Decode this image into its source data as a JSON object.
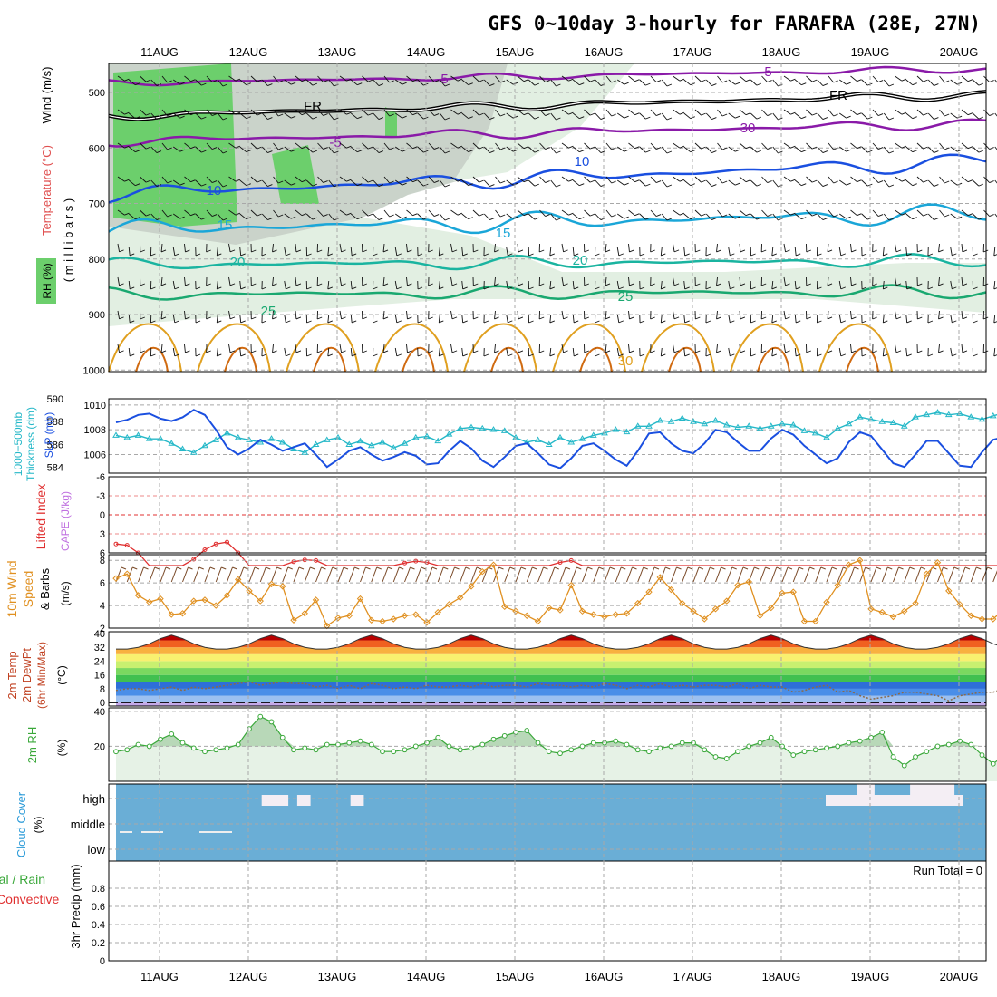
{
  "title": "GFS 0~10day 3-hourly for FARAFRA (28E, 27N)",
  "days": [
    "11AUG",
    "12AUG",
    "13AUG",
    "14AUG",
    "15AUG",
    "16AUG",
    "17AUG",
    "18AUG",
    "19AUG",
    "20AUG"
  ],
  "colors": {
    "grid": "#a8a8a8",
    "panel_border": "#000000",
    "purple": "#8a1aa8",
    "blue": "#1a4fe0",
    "cyan": "#1aa6d8",
    "teal": "#1ab4a0",
    "green": "#1aa870",
    "orange": "#e0a020",
    "dark_orange": "#d06a10",
    "rh_dark": "#b8c4b8",
    "rh_light": "#e2efe2",
    "rh_bright": "#6ccf6c",
    "cloud": "#6aaed6",
    "lifted": "#e03030",
    "cape": "#c070e0",
    "wind10m": "#e09020",
    "rh2m": "#3aa83a"
  },
  "upper_air": {
    "labels": {
      "rh": "RH (%)",
      "temperature": "Temperature (°C)",
      "wind": "Wind (m/s)",
      "pressure": "( m i l l i b a r s )"
    },
    "pressure_ticks": [
      "500",
      "600",
      "700",
      "800",
      "900",
      "1000"
    ],
    "contour_labels": [
      "-5",
      "FR",
      "-5",
      "10",
      "15",
      "20",
      "25",
      "30",
      "-5",
      "FR",
      "10",
      "15",
      "20",
      "25",
      "30"
    ]
  },
  "panels": {
    "thickness": {
      "label_left": "1000−500mb\nThickness (dm)",
      "label_right": "SLP (mb)",
      "thick_ticks": [
        "590",
        "588",
        "586",
        "584"
      ],
      "slp_ticks": [
        "1010",
        "1008",
        "1006"
      ]
    },
    "stability": {
      "label_lifted": "Lifted Index",
      "label_cape": "CAPE (J/kg)",
      "ticks": [
        "-6",
        "-3",
        "0",
        "3",
        "6"
      ]
    },
    "wind10m": {
      "label": "10m Wind Speed & Barbs",
      "unit": "(m/s)",
      "ticks": [
        "8",
        "6",
        "4",
        "2"
      ]
    },
    "temp2m": {
      "label_a": "2m Temp",
      "label_b": "2m DewPt",
      "label_c": "(6hr Min/Max)",
      "unit": "(°C)",
      "ticks": [
        "40",
        "32",
        "24",
        "16",
        "8",
        "0"
      ]
    },
    "rh2m": {
      "label": "2m RH",
      "unit": "(%)",
      "ticks": [
        "40",
        "20"
      ]
    },
    "cloud": {
      "label": "Cloud Cover",
      "unit": "(%)",
      "levels": [
        "high",
        "middle",
        "low"
      ]
    },
    "precip": {
      "label_a": "Total / Rain",
      "label_b": "Convective",
      "label_c": "3hr Precip (mm)",
      "ticks": [
        "0.8",
        "0.6",
        "0.4",
        "0.2",
        "0"
      ],
      "run_total": "Run Total = 0"
    }
  },
  "chart_data": [
    {
      "type": "line",
      "name": "slp",
      "unit": "mb",
      "step_hours": 3,
      "values": [
        1008.6,
        1008.8,
        1009.2,
        1009.3,
        1008.9,
        1008.7,
        1009.0,
        1009.6,
        1009.2,
        1008.0,
        1006.6,
        1006.0,
        1006.5,
        1007.2,
        1006.8,
        1006.3,
        1006.6,
        1006.9,
        1006.0,
        1005.0,
        1005.6,
        1006.3,
        1006.6,
        1006.0,
        1005.5,
        1005.8,
        1006.2,
        1005.9,
        1005.2,
        1005.3,
        1006.3,
        1007.1,
        1006.5,
        1005.5,
        1005.0,
        1005.8,
        1006.7,
        1006.9,
        1006.1,
        1005.2,
        1004.9,
        1005.7,
        1006.7,
        1006.9,
        1006.3,
        1005.6,
        1005.1,
        1006.3,
        1007.7,
        1007.8,
        1006.9,
        1006.3,
        1006.1,
        1006.9,
        1008.0,
        1007.8,
        1007.0,
        1006.3,
        1006.3,
        1007.3,
        1008.0,
        1007.6,
        1006.7,
        1006.0,
        1005.3,
        1005.7,
        1007.0,
        1007.8,
        1007.5,
        1006.4,
        1005.3,
        1005.0,
        1006.0,
        1007.1,
        1007.1,
        1006.1,
        1005.1,
        1005.0,
        1006.2,
        1007.2,
        1007.4,
        1006.6,
        1005.3,
        1004.9,
        1006.1,
        1007.2,
        1007.4
      ],
      "ylim": [
        1004.5,
        1010.5
      ]
    },
    {
      "type": "line",
      "name": "thickness",
      "unit": "dm",
      "step_hours": 3,
      "values": [
        586.8,
        586.6,
        586.8,
        586.5,
        586.5,
        586.1,
        585.6,
        585.3,
        585.9,
        586.4,
        587.0,
        586.6,
        586.4,
        586.2,
        586.5,
        586.2,
        585.6,
        585.3,
        586.0,
        586.4,
        586.6,
        586.0,
        586.3,
        585.9,
        586.2,
        585.7,
        586.1,
        586.6,
        586.7,
        586.3,
        586.9,
        587.4,
        587.5,
        587.4,
        587.3,
        587.2,
        586.6,
        586.2,
        586.4,
        586.0,
        586.6,
        586.2,
        586.5,
        586.8,
        587.0,
        587.3,
        587.1,
        587.6,
        587.6,
        588.1,
        588.0,
        588.3,
        588.0,
        587.8,
        588.1,
        587.7,
        587.5,
        587.6,
        587.4,
        587.6,
        587.8,
        587.7,
        587.2,
        587.0,
        586.6,
        587.4,
        587.8,
        588.4,
        588.2,
        588.0,
        587.9,
        587.6,
        588.4,
        588.6,
        588.8,
        588.6,
        588.7,
        588.4,
        588.2,
        588.5,
        588.8,
        588.6,
        588.2,
        587.6,
        587.6,
        587.3
      ],
      "ylim": [
        583.5,
        590
      ]
    },
    {
      "type": "line",
      "name": "lifted_index",
      "unit": "",
      "step_hours": 3,
      "values": [
        4.6,
        4.8,
        6,
        8,
        8,
        8,
        8,
        7,
        5.5,
        4.6,
        4.3,
        6,
        8,
        8,
        8,
        8,
        7.4,
        7.1,
        7.2,
        8,
        8,
        8,
        8,
        8,
        8,
        8,
        7.6,
        7.3,
        7.5,
        8,
        8,
        8,
        8,
        8,
        8,
        8,
        8,
        8,
        8,
        8,
        7.5,
        7.2,
        8,
        8,
        8,
        8,
        8,
        8,
        8,
        8,
        8,
        8,
        8,
        8,
        8,
        8,
        8,
        8,
        8,
        8,
        8,
        8,
        8,
        8,
        8,
        8,
        8,
        8,
        8,
        8,
        8,
        8,
        8,
        8,
        8,
        8,
        8,
        8,
        8,
        8,
        8,
        8,
        8,
        8,
        8,
        8,
        8
      ],
      "ylim": [
        -6,
        6
      ]
    },
    {
      "type": "line",
      "name": "wind_speed_10m",
      "unit": "m/s",
      "step_hours": 3,
      "values": [
        6.4,
        6.8,
        4.9,
        4.3,
        4.6,
        3.2,
        3.3,
        4.4,
        4.5,
        4.0,
        4.9,
        6.3,
        5.3,
        4.4,
        5.9,
        5.7,
        2.7,
        3.3,
        4.5,
        2.2,
        2.9,
        3.1,
        4.6,
        2.7,
        2.6,
        2.8,
        3.1,
        3.2,
        2.5,
        3.4,
        4.1,
        4.7,
        5.7,
        7.0,
        7.6,
        3.9,
        3.5,
        3.1,
        2.6,
        3.8,
        3.6,
        5.8,
        3.5,
        3.2,
        3.0,
        3.2,
        3.3,
        4.2,
        5.2,
        6.5,
        5.4,
        4.2,
        3.5,
        2.8,
        3.7,
        4.4,
        5.8,
        6.1,
        3.1,
        3.8,
        5.1,
        5.2,
        2.6,
        2.6,
        4.3,
        5.8,
        7.6,
        8.0,
        3.7,
        3.4,
        3.0,
        3.5,
        4.2,
        6.8,
        7.8,
        5.3,
        4.1,
        3.1,
        2.8,
        2.8,
        3.7,
        6.2,
        6.6,
        4.0,
        1.9,
        3.5,
        3.0
      ],
      "ylim": [
        2,
        8.5
      ]
    },
    {
      "type": "area",
      "name": "temp_2m",
      "unit": "°C",
      "step_hours": 3,
      "values": [
        31,
        31,
        32,
        34,
        37,
        39,
        37,
        34,
        32,
        31,
        31,
        32,
        34,
        37,
        39,
        37,
        34,
        32,
        31,
        31,
        32,
        34,
        37,
        39,
        37,
        34,
        32,
        31,
        31,
        32,
        34,
        37,
        39,
        37,
        34,
        32,
        31,
        31,
        32,
        34,
        37,
        39,
        37,
        34,
        32,
        31,
        31,
        32,
        34,
        37,
        39,
        37,
        34,
        32,
        31,
        31,
        32,
        34,
        37,
        39,
        37,
        34,
        32,
        31,
        31,
        32,
        34,
        37,
        39,
        37,
        34,
        32,
        31,
        31,
        32,
        34,
        37,
        39,
        37,
        34,
        32,
        31,
        31,
        32,
        34,
        37,
        38
      ],
      "ylim": [
        -2,
        41
      ]
    },
    {
      "type": "line",
      "name": "dewpt_2m",
      "unit": "°C",
      "step_hours": 3,
      "values": [
        7,
        8,
        8,
        7,
        8,
        9,
        7,
        9,
        8,
        9,
        10,
        11,
        12,
        10,
        11,
        12,
        11,
        11,
        9,
        10,
        8,
        10,
        8,
        11,
        10,
        8,
        9,
        8,
        10,
        9,
        9,
        10,
        9,
        11,
        9,
        10,
        10,
        9,
        11,
        10,
        10,
        9,
        10,
        9,
        11,
        10,
        8,
        10,
        9,
        11,
        9,
        10,
        9,
        10,
        10,
        9,
        11,
        8,
        10,
        9,
        9,
        6,
        7,
        9,
        10,
        6,
        7,
        4,
        2,
        3,
        4,
        6,
        6,
        5,
        4,
        1,
        4,
        5,
        6,
        6,
        8,
        7,
        8,
        9,
        9,
        9,
        8
      ],
      "ylim": [
        -2,
        41
      ]
    },
    {
      "type": "area",
      "name": "rh_2m",
      "unit": "%",
      "step_hours": 3,
      "values": [
        17,
        18,
        21,
        20,
        24,
        27,
        22,
        19,
        17,
        18,
        19,
        21,
        30,
        37,
        34,
        25,
        18,
        19,
        18,
        21,
        21,
        22,
        23,
        21,
        17,
        17,
        18,
        20,
        22,
        25,
        20,
        18,
        19,
        21,
        24,
        26,
        28,
        29,
        22,
        17,
        16,
        18,
        20,
        22,
        22,
        23,
        21,
        18,
        17,
        19,
        20,
        22,
        22,
        18,
        14,
        13,
        17,
        20,
        22,
        25,
        20,
        15,
        17,
        18,
        19,
        20,
        22,
        23,
        25,
        28,
        14,
        9,
        14,
        17,
        20,
        21,
        23,
        21,
        15,
        10,
        15,
        18,
        22,
        23,
        25,
        26,
        24
      ],
      "ylim": [
        0,
        42
      ]
    },
    {
      "type": "bar",
      "name": "cloud_cover_high_segments",
      "unit": "day index",
      "segments": [
        [
          1.15,
          1.45
        ],
        [
          1.55,
          1.7
        ],
        [
          2.15,
          2.3
        ],
        [
          7.5,
          9.05
        ]
      ]
    },
    {
      "type": "bar",
      "name": "precip_3hr",
      "unit": "mm",
      "values": [],
      "ylim": [
        0,
        1
      ]
    }
  ]
}
